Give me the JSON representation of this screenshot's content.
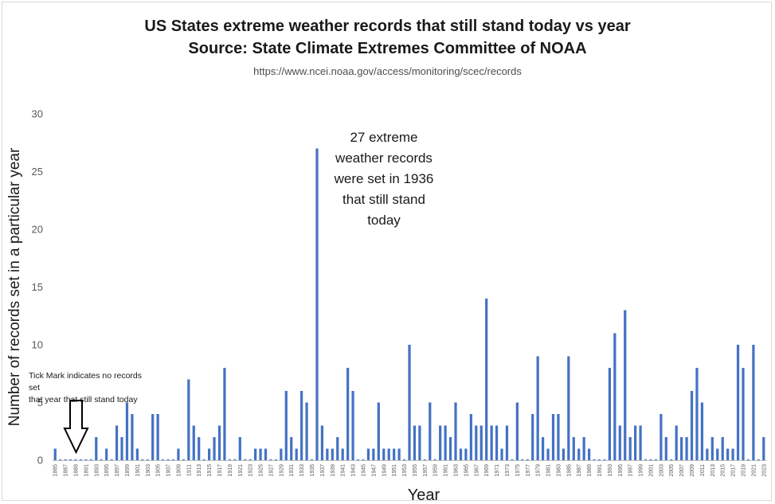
{
  "chart_data": {
    "type": "bar",
    "title": "US States extreme weather records that still stand today vs year",
    "subtitle": "Source: State Climate Extremes Committee of NOAA",
    "source_url": "https://www.ncei.noaa.gov/access/monitoring/scec/records",
    "xlabel": "Year",
    "ylabel": "Number of records set in a particular year",
    "ylim": [
      0,
      30
    ],
    "yticks": [
      0,
      5,
      10,
      15,
      20,
      25,
      30
    ],
    "x_start": 1885,
    "x_end": 2023,
    "x_tick_labels": [
      "1885",
      "1887",
      "1889",
      "1891",
      "1893",
      "1895",
      "1897",
      "1899",
      "1901",
      "1903",
      "1905",
      "1907",
      "1909",
      "1911",
      "1913",
      "1915",
      "1917",
      "1919",
      "1921",
      "1923",
      "1925",
      "1927",
      "1929",
      "1931",
      "1933",
      "1935",
      "1937",
      "1939",
      "1941",
      "1943",
      "1945",
      "1947",
      "1949",
      "1951",
      "1953",
      "1955",
      "1957",
      "1959",
      "1961",
      "1963",
      "1965",
      "1967",
      "1969",
      "1971",
      "1973",
      "1975",
      "1977",
      "1979",
      "1981",
      "1983",
      "1985",
      "1987",
      "1989",
      "1991",
      "1993",
      "1995",
      "1997",
      "1999",
      "2001",
      "2003",
      "2005",
      "2007",
      "2009",
      "2011",
      "2013",
      "2015",
      "2017",
      "2019",
      "2021",
      "2023"
    ],
    "years": [
      1885,
      1886,
      1887,
      1888,
      1889,
      1890,
      1891,
      1892,
      1893,
      1894,
      1895,
      1896,
      1897,
      1898,
      1899,
      1900,
      1901,
      1902,
      1903,
      1904,
      1905,
      1906,
      1907,
      1908,
      1909,
      1910,
      1911,
      1912,
      1913,
      1914,
      1915,
      1916,
      1917,
      1918,
      1919,
      1920,
      1921,
      1922,
      1923,
      1924,
      1925,
      1926,
      1927,
      1928,
      1929,
      1930,
      1931,
      1932,
      1933,
      1934,
      1935,
      1936,
      1937,
      1938,
      1939,
      1940,
      1941,
      1942,
      1943,
      1944,
      1945,
      1946,
      1947,
      1948,
      1949,
      1950,
      1951,
      1952,
      1953,
      1954,
      1955,
      1956,
      1957,
      1958,
      1959,
      1960,
      1961,
      1962,
      1963,
      1964,
      1965,
      1966,
      1967,
      1968,
      1969,
      1970,
      1971,
      1972,
      1973,
      1974,
      1975,
      1976,
      1977,
      1978,
      1979,
      1980,
      1981,
      1982,
      1983,
      1984,
      1985,
      1986,
      1987,
      1988,
      1989,
      1990,
      1991,
      1992,
      1993,
      1994,
      1995,
      1996,
      1997,
      1998,
      1999,
      2000,
      2001,
      2002,
      2003,
      2004,
      2005,
      2006,
      2007,
      2008,
      2009,
      2010,
      2011,
      2012,
      2013,
      2014,
      2015,
      2016,
      2017,
      2018,
      2019,
      2020,
      2021,
      2022,
      2023
    ],
    "values": [
      1,
      0,
      0,
      0,
      0,
      0,
      0,
      0,
      2,
      0,
      1,
      0,
      3,
      2,
      5,
      4,
      1,
      0,
      0,
      4,
      4,
      0,
      0,
      0,
      1,
      0,
      7,
      3,
      2,
      0,
      1,
      2,
      3,
      8,
      0,
      0,
      2,
      0,
      0,
      1,
      1,
      1,
      0,
      0,
      1,
      6,
      2,
      1,
      6,
      5,
      0,
      27,
      3,
      1,
      1,
      2,
      1,
      8,
      6,
      0,
      0,
      1,
      1,
      5,
      1,
      1,
      1,
      1,
      0,
      10,
      3,
      3,
      0,
      5,
      0,
      3,
      3,
      2,
      5,
      1,
      1,
      4,
      3,
      3,
      14,
      3,
      3,
      1,
      3,
      0,
      5,
      0,
      0,
      4,
      9,
      2,
      1,
      4,
      4,
      1,
      9,
      2,
      1,
      2,
      1,
      0,
      0,
      0,
      8,
      11,
      3,
      13,
      2,
      3,
      3,
      0,
      0,
      0,
      4,
      2,
      0,
      3,
      2,
      2,
      6,
      8,
      5,
      1,
      2,
      1,
      2,
      1,
      1,
      10,
      8,
      0,
      10,
      0,
      2
    ],
    "bar_color": "#4472C4",
    "annotations": {
      "peak": [
        "27 extreme",
        "weather records",
        "were set in 1936",
        "that still stand",
        "today"
      ],
      "tick_note": [
        "Tick Mark indicates no records set",
        "that year that still stand today"
      ]
    },
    "grid": false,
    "legend": "none"
  }
}
